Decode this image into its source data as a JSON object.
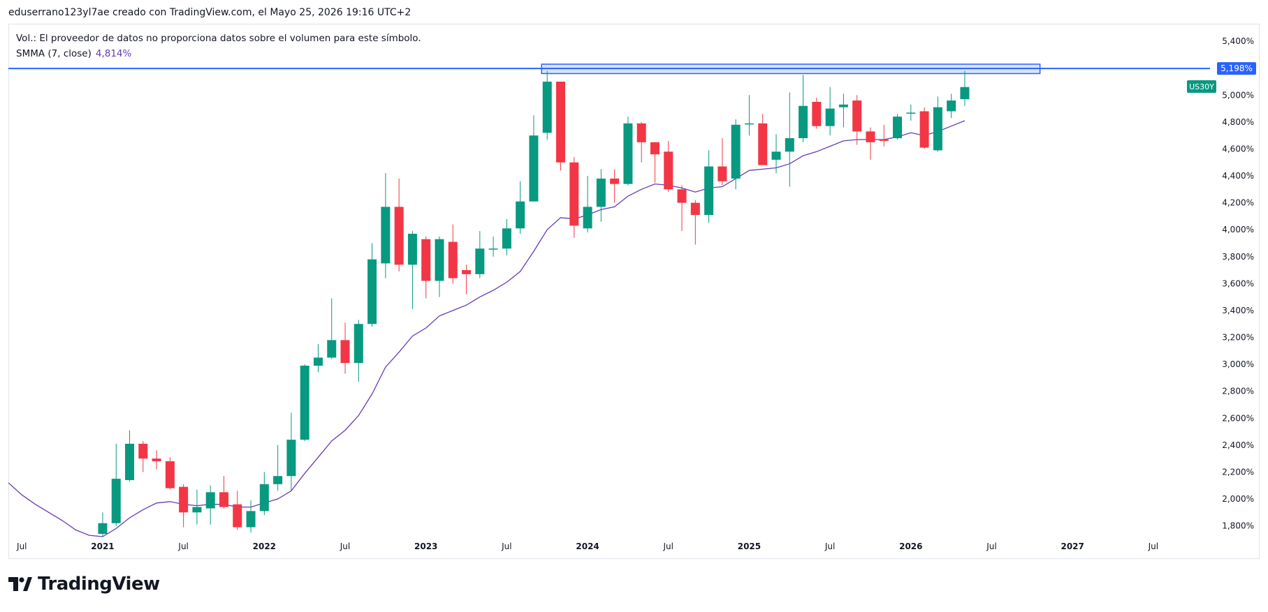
{
  "header": {
    "text": "eduserrano123yl7ae creado con TradingView.com, el Mayo 25, 2026 19:16 UTC+2"
  },
  "legend": {
    "volume_note": "Vol.: El proveedor de datos no proporciona datos sobre el volumen para este símbolo.",
    "smma_label": "SMMA (7, close)",
    "smma_value": "4,814%"
  },
  "footer": {
    "brand": "TradingView"
  },
  "colors": {
    "up": "#089981",
    "down": "#f23645",
    "smma": "#673ab7",
    "level": "#2962ff",
    "grid": "#e0e3eb"
  },
  "chart_data": {
    "type": "candlestick",
    "timeframe": "monthly",
    "symbol_badge": "US30Y",
    "level_label": "5,198%",
    "level_value": 5.198,
    "resistance_zone": {
      "start": "2023-10",
      "end": "2026-11",
      "low": 5.16,
      "high": 5.23
    },
    "ylim": [
      1.72,
      5.52
    ],
    "y_ticks": [
      {
        "value": 1.8,
        "label": "1,800%"
      },
      {
        "value": 2.0,
        "label": "2,000%"
      },
      {
        "value": 2.2,
        "label": "2,200%"
      },
      {
        "value": 2.4,
        "label": "2,400%"
      },
      {
        "value": 2.6,
        "label": "2,600%"
      },
      {
        "value": 2.8,
        "label": "2,800%"
      },
      {
        "value": 3.0,
        "label": "3,000%"
      },
      {
        "value": 3.2,
        "label": "3,200%"
      },
      {
        "value": 3.4,
        "label": "3,400%"
      },
      {
        "value": 3.6,
        "label": "3,600%"
      },
      {
        "value": 3.8,
        "label": "3,800%"
      },
      {
        "value": 4.0,
        "label": "4,000%"
      },
      {
        "value": 4.2,
        "label": "4,200%"
      },
      {
        "value": 4.4,
        "label": "4,400%"
      },
      {
        "value": 4.6,
        "label": "4,600%"
      },
      {
        "value": 4.8,
        "label": "4,800%"
      },
      {
        "value": 5.0,
        "label": "5,000%"
      },
      {
        "value": 5.4,
        "label": "5,400%"
      }
    ],
    "x_start": "2020-06",
    "x_end": "2027-11",
    "x_ticks": [
      {
        "date": "2020-07",
        "label": "Jul",
        "bold": false
      },
      {
        "date": "2021-01",
        "label": "2021",
        "bold": true
      },
      {
        "date": "2021-07",
        "label": "Jul",
        "bold": false
      },
      {
        "date": "2022-01",
        "label": "2022",
        "bold": true
      },
      {
        "date": "2022-07",
        "label": "Jul",
        "bold": false
      },
      {
        "date": "2023-01",
        "label": "2023",
        "bold": true
      },
      {
        "date": "2023-07",
        "label": "Jul",
        "bold": false
      },
      {
        "date": "2024-01",
        "label": "2024",
        "bold": true
      },
      {
        "date": "2024-07",
        "label": "Jul",
        "bold": false
      },
      {
        "date": "2025-01",
        "label": "2025",
        "bold": true
      },
      {
        "date": "2025-07",
        "label": "Jul",
        "bold": false
      },
      {
        "date": "2026-01",
        "label": "2026",
        "bold": true
      },
      {
        "date": "2026-07",
        "label": "Jul",
        "bold": false
      },
      {
        "date": "2027-01",
        "label": "2027",
        "bold": true
      },
      {
        "date": "2027-07",
        "label": "Jul",
        "bold": false
      }
    ],
    "candles": [
      {
        "date": "2021-01",
        "open": 1.74,
        "high": 1.9,
        "low": 1.72,
        "close": 1.82
      },
      {
        "date": "2021-02",
        "open": 1.82,
        "high": 2.41,
        "low": 1.8,
        "close": 2.15
      },
      {
        "date": "2021-03",
        "open": 2.14,
        "high": 2.51,
        "low": 2.13,
        "close": 2.41
      },
      {
        "date": "2021-04",
        "open": 2.41,
        "high": 2.43,
        "low": 2.2,
        "close": 2.3
      },
      {
        "date": "2021-05",
        "open": 2.3,
        "high": 2.36,
        "low": 2.22,
        "close": 2.28
      },
      {
        "date": "2021-06",
        "open": 2.28,
        "high": 2.31,
        "low": 2.07,
        "close": 2.08
      },
      {
        "date": "2021-07",
        "open": 2.09,
        "high": 2.11,
        "low": 1.79,
        "close": 1.9
      },
      {
        "date": "2021-08",
        "open": 1.9,
        "high": 2.07,
        "low": 1.81,
        "close": 1.94
      },
      {
        "date": "2021-09",
        "open": 1.93,
        "high": 2.1,
        "low": 1.81,
        "close": 2.05
      },
      {
        "date": "2021-10",
        "open": 2.05,
        "high": 2.17,
        "low": 1.93,
        "close": 1.94
      },
      {
        "date": "2021-11",
        "open": 1.96,
        "high": 2.06,
        "low": 1.77,
        "close": 1.79
      },
      {
        "date": "2021-12",
        "open": 1.79,
        "high": 1.99,
        "low": 1.75,
        "close": 1.91
      },
      {
        "date": "2022-01",
        "open": 1.91,
        "high": 2.2,
        "low": 1.88,
        "close": 2.11
      },
      {
        "date": "2022-02",
        "open": 2.11,
        "high": 2.4,
        "low": 2.06,
        "close": 2.17
      },
      {
        "date": "2022-03",
        "open": 2.17,
        "high": 2.64,
        "low": 2.06,
        "close": 2.44
      },
      {
        "date": "2022-04",
        "open": 2.44,
        "high": 3.0,
        "low": 2.43,
        "close": 2.99
      },
      {
        "date": "2022-05",
        "open": 2.99,
        "high": 3.15,
        "low": 2.94,
        "close": 3.05
      },
      {
        "date": "2022-06",
        "open": 3.05,
        "high": 3.49,
        "low": 3.04,
        "close": 3.18
      },
      {
        "date": "2022-07",
        "open": 3.18,
        "high": 3.31,
        "low": 2.93,
        "close": 3.01
      },
      {
        "date": "2022-08",
        "open": 3.01,
        "high": 3.33,
        "low": 2.87,
        "close": 3.3
      },
      {
        "date": "2022-09",
        "open": 3.3,
        "high": 3.9,
        "low": 3.28,
        "close": 3.78
      },
      {
        "date": "2022-10",
        "open": 3.75,
        "high": 4.42,
        "low": 3.64,
        "close": 4.17
      },
      {
        "date": "2022-11",
        "open": 4.17,
        "high": 4.38,
        "low": 3.69,
        "close": 3.74
      },
      {
        "date": "2022-12",
        "open": 3.74,
        "high": 3.99,
        "low": 3.41,
        "close": 3.97
      },
      {
        "date": "2023-01",
        "open": 3.93,
        "high": 3.95,
        "low": 3.49,
        "close": 3.62
      },
      {
        "date": "2023-02",
        "open": 3.62,
        "high": 3.95,
        "low": 3.5,
        "close": 3.93
      },
      {
        "date": "2023-03",
        "open": 3.91,
        "high": 4.04,
        "low": 3.6,
        "close": 3.64
      },
      {
        "date": "2023-04",
        "open": 3.7,
        "high": 3.74,
        "low": 3.52,
        "close": 3.67
      },
      {
        "date": "2023-05",
        "open": 3.67,
        "high": 3.99,
        "low": 3.64,
        "close": 3.86
      },
      {
        "date": "2023-06",
        "open": 3.86,
        "high": 3.95,
        "low": 3.8,
        "close": 3.86
      },
      {
        "date": "2023-07",
        "open": 3.86,
        "high": 4.08,
        "low": 3.81,
        "close": 4.01
      },
      {
        "date": "2023-08",
        "open": 4.01,
        "high": 4.36,
        "low": 3.97,
        "close": 4.21
      },
      {
        "date": "2023-09",
        "open": 4.21,
        "high": 4.85,
        "low": 4.21,
        "close": 4.7
      },
      {
        "date": "2023-10",
        "open": 4.72,
        "high": 5.18,
        "low": 4.67,
        "close": 5.1
      },
      {
        "date": "2023-11",
        "open": 5.1,
        "high": 5.1,
        "low": 4.44,
        "close": 4.5
      },
      {
        "date": "2023-12",
        "open": 4.5,
        "high": 4.54,
        "low": 3.94,
        "close": 4.03
      },
      {
        "date": "2024-01",
        "open": 4.01,
        "high": 4.4,
        "low": 3.98,
        "close": 4.17
      },
      {
        "date": "2024-02",
        "open": 4.17,
        "high": 4.45,
        "low": 4.06,
        "close": 4.38
      },
      {
        "date": "2024-03",
        "open": 4.38,
        "high": 4.45,
        "low": 4.2,
        "close": 4.34
      },
      {
        "date": "2024-04",
        "open": 4.34,
        "high": 4.84,
        "low": 4.33,
        "close": 4.79
      },
      {
        "date": "2024-05",
        "open": 4.79,
        "high": 4.8,
        "low": 4.5,
        "close": 4.65
      },
      {
        "date": "2024-06",
        "open": 4.65,
        "high": 4.65,
        "low": 4.35,
        "close": 4.56
      },
      {
        "date": "2024-07",
        "open": 4.58,
        "high": 4.66,
        "low": 4.28,
        "close": 4.3
      },
      {
        "date": "2024-08",
        "open": 4.3,
        "high": 4.33,
        "low": 3.99,
        "close": 4.2
      },
      {
        "date": "2024-09",
        "open": 4.2,
        "high": 4.22,
        "low": 3.89,
        "close": 4.11
      },
      {
        "date": "2024-10",
        "open": 4.11,
        "high": 4.59,
        "low": 4.05,
        "close": 4.47
      },
      {
        "date": "2024-11",
        "open": 4.47,
        "high": 4.68,
        "low": 4.33,
        "close": 4.36
      },
      {
        "date": "2024-12",
        "open": 4.38,
        "high": 4.82,
        "low": 4.3,
        "close": 4.78
      },
      {
        "date": "2025-01",
        "open": 4.79,
        "high": 5.0,
        "low": 4.7,
        "close": 4.79
      },
      {
        "date": "2025-02",
        "open": 4.79,
        "high": 4.86,
        "low": 4.48,
        "close": 4.48
      },
      {
        "date": "2025-03",
        "open": 4.52,
        "high": 4.71,
        "low": 4.42,
        "close": 4.58
      },
      {
        "date": "2025-04",
        "open": 4.58,
        "high": 5.02,
        "low": 4.32,
        "close": 4.68
      },
      {
        "date": "2025-05",
        "open": 4.68,
        "high": 5.15,
        "low": 4.65,
        "close": 4.92
      },
      {
        "date": "2025-06",
        "open": 4.95,
        "high": 4.98,
        "low": 4.75,
        "close": 4.77
      },
      {
        "date": "2025-07",
        "open": 4.77,
        "high": 5.06,
        "low": 4.7,
        "close": 4.9
      },
      {
        "date": "2025-08",
        "open": 4.91,
        "high": 5.01,
        "low": 4.76,
        "close": 4.93
      },
      {
        "date": "2025-09",
        "open": 4.96,
        "high": 5.0,
        "low": 4.63,
        "close": 4.73
      },
      {
        "date": "2025-10",
        "open": 4.73,
        "high": 4.76,
        "low": 4.52,
        "close": 4.65
      },
      {
        "date": "2025-11",
        "open": 4.67,
        "high": 4.78,
        "low": 4.62,
        "close": 4.66
      },
      {
        "date": "2025-12",
        "open": 4.68,
        "high": 4.86,
        "low": 4.67,
        "close": 4.84
      },
      {
        "date": "2026-01",
        "open": 4.87,
        "high": 4.93,
        "low": 4.81,
        "close": 4.87
      },
      {
        "date": "2026-02",
        "open": 4.88,
        "high": 4.91,
        "low": 4.6,
        "close": 4.61
      },
      {
        "date": "2026-03",
        "open": 4.59,
        "high": 4.99,
        "low": 4.58,
        "close": 4.91
      },
      {
        "date": "2026-04",
        "open": 4.88,
        "high": 5.01,
        "low": 4.83,
        "close": 4.96
      },
      {
        "date": "2026-05",
        "open": 4.97,
        "high": 5.18,
        "low": 4.92,
        "close": 5.06
      }
    ],
    "smma": [
      {
        "date": "2020-06",
        "value": 2.12
      },
      {
        "date": "2020-07",
        "value": 2.03
      },
      {
        "date": "2020-08",
        "value": 1.96
      },
      {
        "date": "2020-09",
        "value": 1.9
      },
      {
        "date": "2020-10",
        "value": 1.84
      },
      {
        "date": "2020-11",
        "value": 1.77
      },
      {
        "date": "2020-12",
        "value": 1.73
      },
      {
        "date": "2021-01",
        "value": 1.71
      },
      {
        "date": "2021-02",
        "value": 1.78
      },
      {
        "date": "2021-03",
        "value": 1.86
      },
      {
        "date": "2021-04",
        "value": 1.92
      },
      {
        "date": "2021-05",
        "value": 1.97
      },
      {
        "date": "2021-06",
        "value": 1.98
      },
      {
        "date": "2021-07",
        "value": 1.96
      },
      {
        "date": "2021-08",
        "value": 1.95
      },
      {
        "date": "2021-09",
        "value": 1.96
      },
      {
        "date": "2021-10",
        "value": 1.96
      },
      {
        "date": "2021-11",
        "value": 1.94
      },
      {
        "date": "2021-12",
        "value": 1.94
      },
      {
        "date": "2022-01",
        "value": 1.97
      },
      {
        "date": "2022-02",
        "value": 2.0
      },
      {
        "date": "2022-03",
        "value": 2.06
      },
      {
        "date": "2022-04",
        "value": 2.19
      },
      {
        "date": "2022-05",
        "value": 2.31
      },
      {
        "date": "2022-06",
        "value": 2.43
      },
      {
        "date": "2022-07",
        "value": 2.51
      },
      {
        "date": "2022-08",
        "value": 2.62
      },
      {
        "date": "2022-09",
        "value": 2.78
      },
      {
        "date": "2022-10",
        "value": 2.98
      },
      {
        "date": "2022-11",
        "value": 3.09
      },
      {
        "date": "2022-12",
        "value": 3.21
      },
      {
        "date": "2023-01",
        "value": 3.27
      },
      {
        "date": "2023-02",
        "value": 3.36
      },
      {
        "date": "2023-03",
        "value": 3.4
      },
      {
        "date": "2023-04",
        "value": 3.44
      },
      {
        "date": "2023-05",
        "value": 3.5
      },
      {
        "date": "2023-06",
        "value": 3.55
      },
      {
        "date": "2023-07",
        "value": 3.61
      },
      {
        "date": "2023-08",
        "value": 3.69
      },
      {
        "date": "2023-09",
        "value": 3.84
      },
      {
        "date": "2023-10",
        "value": 4.0
      },
      {
        "date": "2023-11",
        "value": 4.09
      },
      {
        "date": "2023-12",
        "value": 4.08
      },
      {
        "date": "2024-01",
        "value": 4.11
      },
      {
        "date": "2024-02",
        "value": 4.15
      },
      {
        "date": "2024-03",
        "value": 4.17
      },
      {
        "date": "2024-04",
        "value": 4.25
      },
      {
        "date": "2024-05",
        "value": 4.3
      },
      {
        "date": "2024-06",
        "value": 4.34
      },
      {
        "date": "2024-07",
        "value": 4.33
      },
      {
        "date": "2024-08",
        "value": 4.31
      },
      {
        "date": "2024-09",
        "value": 4.28
      },
      {
        "date": "2024-10",
        "value": 4.31
      },
      {
        "date": "2024-11",
        "value": 4.32
      },
      {
        "date": "2024-12",
        "value": 4.38
      },
      {
        "date": "2025-01",
        "value": 4.44
      },
      {
        "date": "2025-02",
        "value": 4.45
      },
      {
        "date": "2025-03",
        "value": 4.46
      },
      {
        "date": "2025-04",
        "value": 4.49
      },
      {
        "date": "2025-05",
        "value": 4.55
      },
      {
        "date": "2025-06",
        "value": 4.58
      },
      {
        "date": "2025-07",
        "value": 4.62
      },
      {
        "date": "2025-08",
        "value": 4.66
      },
      {
        "date": "2025-09",
        "value": 4.67
      },
      {
        "date": "2025-10",
        "value": 4.67
      },
      {
        "date": "2025-11",
        "value": 4.67
      },
      {
        "date": "2025-12",
        "value": 4.69
      },
      {
        "date": "2026-01",
        "value": 4.72
      },
      {
        "date": "2026-02",
        "value": 4.7
      },
      {
        "date": "2026-03",
        "value": 4.73
      },
      {
        "date": "2026-04",
        "value": 4.77
      },
      {
        "date": "2026-05",
        "value": 4.81
      }
    ]
  }
}
